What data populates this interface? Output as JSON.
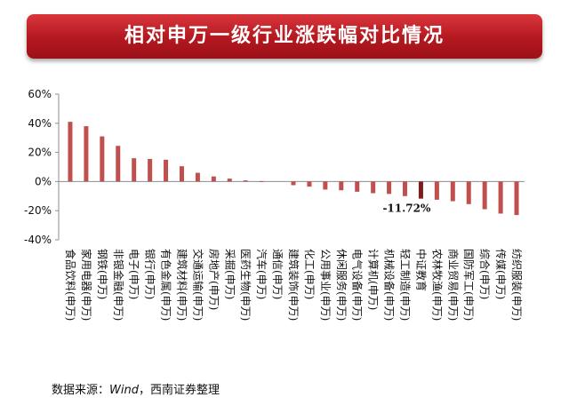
{
  "title": "相对申万一级行业涨跌幅对比情况",
  "source": {
    "prefix": "数据来源：",
    "wind": "Wind",
    "suffix": "，西南证券整理"
  },
  "colors": {
    "bar": "#c0504d",
    "highlight_bar": "#7f1d1d",
    "banner": "#b3181f"
  },
  "chart_data": {
    "type": "bar",
    "ylim": [
      -40,
      60
    ],
    "yticks": [
      60,
      40,
      20,
      0,
      -20,
      -40
    ],
    "ytick_format": "percent",
    "grid": false,
    "legend": "none",
    "categories": [
      "食品饮料(申万)",
      "家用电器(申万)",
      "钢铁(申万)",
      "非银金融(申万)",
      "电子(申万)",
      "银行(申万)",
      "有色金属(申万)",
      "建筑材料(申万)",
      "交通运输(申万)",
      "房地产(申万)",
      "采掘(申万)",
      "医药生物(申万)",
      "汽车(申万)",
      "通信(申万)",
      "建筑装饰(申万)",
      "化工(申万)",
      "公用事业(申万)",
      "休闲服务(申万)",
      "电气设备(申万)",
      "计算机(申万)",
      "机械设备(申万)",
      "轻工制造(申万)",
      "中证教育",
      "农林牧渔(申万)",
      "商业贸易(申万)",
      "国防军工(申万)",
      "综合(申万)",
      "传媒(申万)",
      "纺织服装(申万)"
    ],
    "values": [
      41,
      38,
      31,
      24.5,
      16,
      15.5,
      15,
      10.5,
      6,
      3.5,
      2,
      0.8,
      0.3,
      0,
      -2.5,
      -3.5,
      -5.5,
      -6,
      -7,
      -8,
      -8.5,
      -10,
      -11.72,
      -12.5,
      -13.5,
      -15.5,
      -19,
      -22,
      -23
    ],
    "highlight_index": 22,
    "annotation": "-11.72%"
  }
}
